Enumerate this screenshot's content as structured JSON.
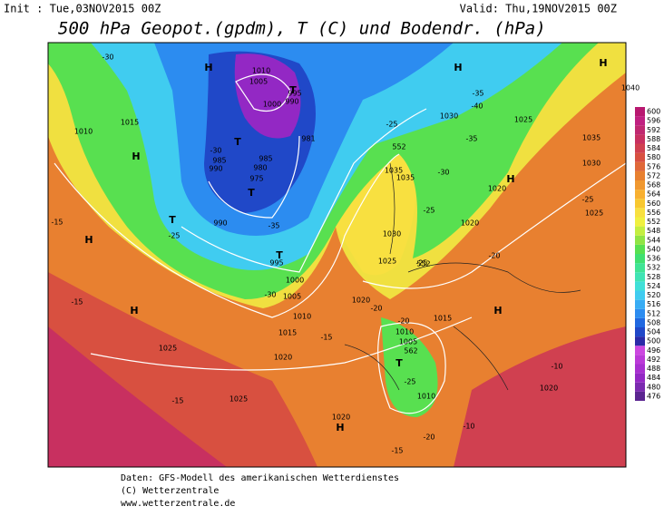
{
  "header": {
    "init": "Init : Tue,03NOV2015 00Z",
    "valid": "Valid: Thu,19NOV2015 00Z",
    "title": "500 hPa Geopot.(gpdm), T (C) und Bodendr. (hPa)"
  },
  "footer": [
    "Daten: GFS-Modell des amerikanischen Wetterdienstes",
    "(C) Wetterzentrale",
    "www.wetterzentrale.de"
  ],
  "colorbar": {
    "ticks": [
      476,
      480,
      484,
      488,
      492,
      496,
      500,
      504,
      508,
      512,
      516,
      520,
      524,
      528,
      532,
      536,
      540,
      544,
      548,
      552,
      556,
      560,
      564,
      568,
      572,
      576,
      580,
      584,
      588,
      592,
      596,
      600
    ],
    "colors": [
      "#5b2590",
      "#7a2aaf",
      "#9328c4",
      "#a830d0",
      "#bb3ad8",
      "#cc48e0",
      "#2a2aa8",
      "#2048c8",
      "#2068e0",
      "#2c8cf0",
      "#38acf4",
      "#40ccf0",
      "#40e0d8",
      "#40e4b4",
      "#40e494",
      "#40e070",
      "#58e050",
      "#90e444",
      "#c4ee40",
      "#f0f040",
      "#f8e040",
      "#f8c830",
      "#f8b030",
      "#f09830",
      "#e88030",
      "#e06838",
      "#d85040",
      "#d04050",
      "#c83060",
      "#c02870",
      "#c02080",
      "#b81870"
    ]
  },
  "labels": [
    "H",
    "H",
    "H",
    "H",
    "H",
    "H",
    "H",
    "H",
    "H",
    "T",
    "T",
    "T",
    "T",
    "T",
    "T",
    "1010",
    "1005",
    "1000",
    "995",
    "990",
    "985",
    "980",
    "975",
    "990",
    "985",
    "981",
    "990",
    "995",
    "1000",
    "1005",
    "1010",
    "1015",
    "1015",
    "1010",
    "1025",
    "1020",
    "1025",
    "1020",
    "1020",
    "1025",
    "1030",
    "1035",
    "1035",
    "1030",
    "1025",
    "1030",
    "1035",
    "1040",
    "1020",
    "1025",
    "1020",
    "1015",
    "1010",
    "1005",
    "1010",
    "1020",
    "-30",
    "-35",
    "-25",
    "-30",
    "-30",
    "-35",
    "-40",
    "-35",
    "-25",
    "-30",
    "-25",
    "-20",
    "-25",
    "-15",
    "-15",
    "-15",
    "-15",
    "-20",
    "-20",
    "-25",
    "-20",
    "-15",
    "-10",
    "-10",
    "-25",
    "552",
    "552",
    "562"
  ]
}
